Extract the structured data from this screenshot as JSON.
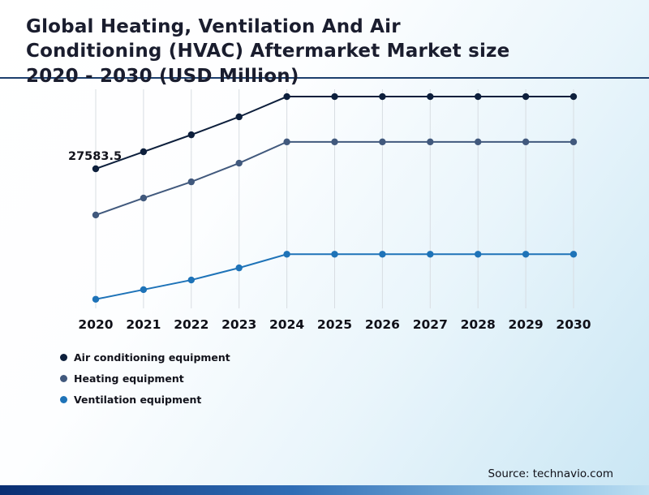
{
  "title": "Global Heating, Ventilation And Air Conditioning (HVAC) Aftermarket Market size 2020 - 2030 (USD Million)",
  "source": "Source: technavio.com",
  "colors": {
    "title_text": "#1a1d2e",
    "grid_line": "#d8dde2",
    "rule_line": "#1d3f6e",
    "bottom_bar_start": "#0a2f73",
    "bottom_bar_end": "#bfe0f2"
  },
  "chart_data": {
    "type": "line",
    "x": [
      "2020",
      "2021",
      "2022",
      "2023",
      "2024",
      "2025",
      "2026",
      "2027",
      "2028",
      "2029",
      "2030"
    ],
    "series": [
      {
        "name": "Air conditioning equipment",
        "color": "#0d1f3c",
        "values": [
          27583.5,
          30950,
          34300,
          37850,
          41850,
          41850,
          41850,
          41850,
          41850,
          41850,
          41850
        ]
      },
      {
        "name": "Heating equipment",
        "color": "#41597d",
        "values": [
          18450,
          21800,
          25000,
          28700,
          32900,
          32900,
          32900,
          32900,
          32900,
          32900,
          32900
        ]
      },
      {
        "name": "Ventilation equipment",
        "color": "#1e73b8",
        "values": [
          1800,
          3700,
          5600,
          8000,
          10700,
          10700,
          10700,
          10700,
          10700,
          10700,
          10700
        ]
      }
    ],
    "ylim": [
      0,
      43300
    ],
    "grid": "vertical",
    "legend_position": "bottom-left",
    "annotations": [
      {
        "series": "Air conditioning equipment",
        "x": "2020",
        "label": "27583.5"
      }
    ]
  }
}
